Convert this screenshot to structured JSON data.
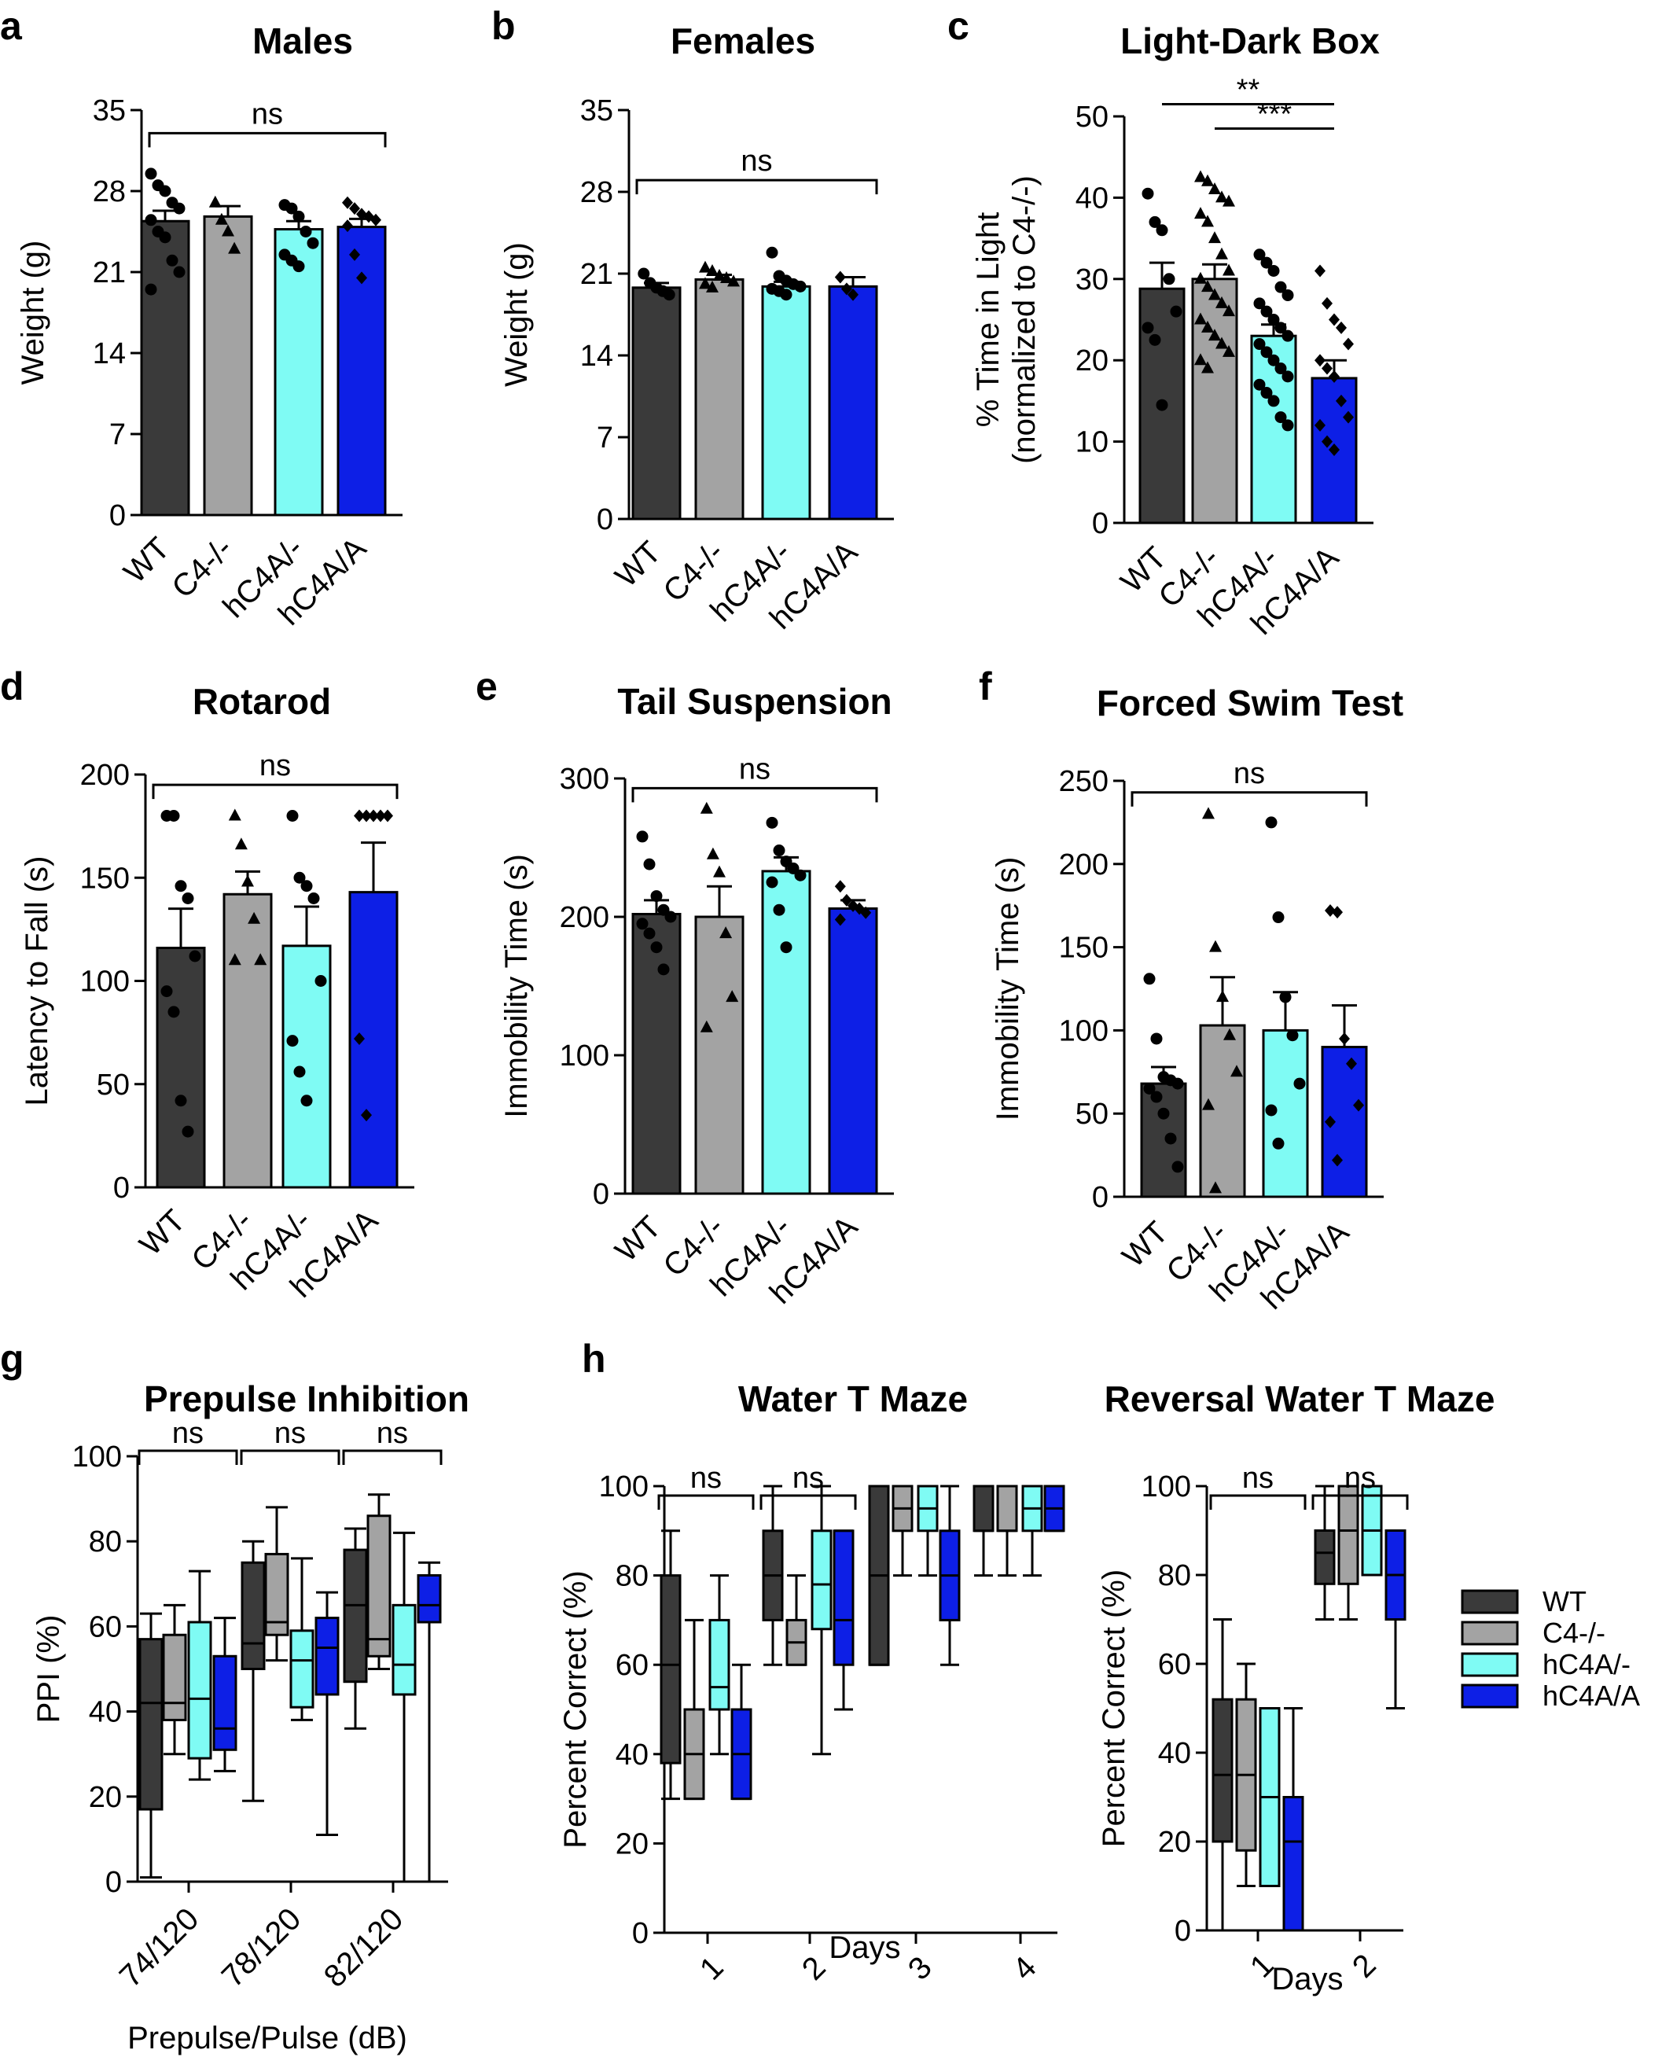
{
  "colors": {
    "WT": "#3a3a3a",
    "C4-/-": "#a3a3a3",
    "hC4A/-": "#7ffbf4",
    "hC4A/A": "#0d1fe6"
  },
  "legend": [
    "WT",
    "C4-/-",
    "hC4A/-",
    "hC4A/A"
  ],
  "chart_data": [
    {
      "id": "a",
      "letter": "a",
      "type": "bar",
      "title": "Males",
      "ylabel": "Weight (g)",
      "categories": [
        "WT",
        "C4-/-",
        "hC4A/-",
        "hC4A/A"
      ],
      "ylim": [
        0,
        35
      ],
      "yticks": [
        0,
        7,
        14,
        21,
        28,
        35
      ],
      "values": [
        25.4,
        25.8,
        24.7,
        24.9
      ],
      "sem": [
        0.9,
        0.9,
        0.7,
        0.7
      ],
      "points": [
        [
          29.5,
          28.5,
          28,
          27,
          26.5,
          25.5,
          24.5,
          24,
          22,
          21,
          19.5
        ],
        [
          27,
          25.5,
          24.5,
          23
        ],
        [
          26.8,
          26.5,
          25.8,
          24.5,
          23.5,
          22.5,
          22,
          21.5
        ],
        [
          27,
          26.5,
          26,
          25.8,
          25.5,
          25,
          22.5,
          20.5
        ]
      ],
      "comparisons": [
        {
          "from": 0,
          "to": 3,
          "label": "ns",
          "y": 33
        }
      ]
    },
    {
      "id": "b",
      "letter": "b",
      "type": "bar",
      "title": "Females",
      "ylabel": "Weight (g)",
      "categories": [
        "WT",
        "C4-/-",
        "hC4A/-",
        "hC4A/A"
      ],
      "ylim": [
        0,
        35
      ],
      "yticks": [
        0,
        7,
        14,
        21,
        28,
        35
      ],
      "values": [
        19.8,
        20.5,
        19.9,
        19.9
      ],
      "sem": [
        0.4,
        0.4,
        0.4,
        0.8
      ],
      "points": [
        [
          21,
          20.2,
          19.8,
          19.5,
          19.2
        ],
        [
          21.5,
          21.2,
          20.8,
          20.6,
          20.3,
          20.1,
          19.8
        ],
        [
          22.8,
          20.8,
          20.4,
          20.1,
          19.9,
          19.7,
          19.5,
          19.2
        ],
        [
          20.7,
          19.7,
          19.2
        ]
      ],
      "comparisons": [
        {
          "from": 0,
          "to": 3,
          "label": "ns",
          "y": 29
        }
      ]
    },
    {
      "id": "c",
      "letter": "c",
      "type": "bar",
      "title": "Light-Dark Box",
      "ylabel": "% Time in Light\n(normalized to C4-/-)",
      "categories": [
        "WT",
        "C4-/-",
        "hC4A/-",
        "hC4A/A"
      ],
      "ylim": [
        0,
        50
      ],
      "yticks": [
        0,
        10,
        20,
        30,
        40,
        50
      ],
      "values": [
        28.8,
        30,
        23,
        17.8
      ],
      "sem": [
        3.2,
        1.8,
        1.4,
        2.2
      ],
      "points": [
        [
          40.5,
          37,
          36,
          30,
          26,
          24,
          22.5,
          14.5
        ],
        [
          42.5,
          42,
          41,
          40,
          39.5,
          38,
          37,
          35,
          33,
          31,
          30,
          29,
          28,
          27,
          26,
          25,
          24,
          23,
          22,
          21,
          20,
          19
        ],
        [
          33,
          32,
          31,
          29,
          28,
          27,
          26,
          25,
          24,
          23,
          22,
          21,
          20,
          19,
          18,
          17,
          16,
          15,
          13,
          12
        ],
        [
          31,
          27,
          25,
          24,
          22,
          20,
          19,
          18,
          15,
          13,
          12,
          10,
          9
        ]
      ],
      "comparisons": [
        {
          "from": 0,
          "to": 3,
          "label": "**",
          "y": 51.5
        },
        {
          "from": 1,
          "to": 3,
          "label": "***",
          "y": 48.5
        }
      ]
    },
    {
      "id": "d",
      "letter": "d",
      "type": "bar",
      "title": "Rotarod",
      "ylabel": "Latency to Fall (s)",
      "categories": [
        "WT",
        "C4-/-",
        "hC4A/-",
        "hC4A/A"
      ],
      "ylim": [
        0,
        200
      ],
      "yticks": [
        0,
        50,
        100,
        150,
        200
      ],
      "values": [
        116,
        142,
        117,
        143
      ],
      "sem": [
        19,
        11,
        19,
        24
      ],
      "points": [
        [
          180,
          180,
          146,
          140,
          112,
          95,
          85,
          42,
          27
        ],
        [
          180,
          166,
          148,
          130,
          110,
          110
        ],
        [
          180,
          150,
          146,
          140,
          100,
          71,
          56,
          42
        ],
        [
          180,
          180,
          180,
          180,
          180,
          72,
          35
        ]
      ],
      "comparisons": [
        {
          "from": 0,
          "to": 3,
          "label": "ns",
          "y": 195
        }
      ]
    },
    {
      "id": "e",
      "letter": "e",
      "type": "bar",
      "title": "Tail Suspension",
      "ylabel": "Immobility Time (s)",
      "categories": [
        "WT",
        "C4-/-",
        "hC4A/-",
        "hC4A/A"
      ],
      "ylim": [
        0,
        300
      ],
      "yticks": [
        0,
        100,
        200,
        300
      ],
      "values": [
        202,
        200,
        233,
        206
      ],
      "sem": [
        10,
        22,
        10,
        6
      ],
      "points": [
        [
          258,
          238,
          215,
          205,
          200,
          195,
          188,
          178,
          162
        ],
        [
          278,
          245,
          232,
          188,
          142,
          120
        ],
        [
          268,
          248,
          240,
          235,
          230,
          225,
          205,
          178
        ],
        [
          222,
          212,
          208,
          206,
          203,
          198
        ]
      ],
      "comparisons": [
        {
          "from": 0,
          "to": 3,
          "label": "ns",
          "y": 293
        }
      ]
    },
    {
      "id": "f",
      "letter": "f",
      "type": "bar",
      "title": "Forced Swim Test",
      "ylabel": "Immobility Time (s)",
      "categories": [
        "WT",
        "C4-/-",
        "hC4A/-",
        "hC4A/A"
      ],
      "ylim": [
        0,
        250
      ],
      "yticks": [
        0,
        50,
        100,
        150,
        200,
        250
      ],
      "values": [
        68,
        103,
        100,
        90
      ],
      "sem": [
        10,
        29,
        23,
        25
      ],
      "points": [
        [
          131,
          95,
          72,
          70,
          68,
          65,
          60,
          50,
          35,
          18
        ],
        [
          230,
          150,
          120,
          97,
          75,
          55,
          5
        ],
        [
          225,
          168,
          120,
          97,
          68,
          52,
          32
        ],
        [
          172,
          171,
          95,
          80,
          55,
          45,
          22
        ]
      ],
      "comparisons": [
        {
          "from": 0,
          "to": 3,
          "label": "ns",
          "y": 243
        }
      ]
    },
    {
      "id": "g",
      "letter": "g",
      "type": "box",
      "title": "Prepulse Inhibition",
      "ylabel": "PPI (%)",
      "xlabel": "Prepulse/Pulse (dB)",
      "groups": [
        "74/120",
        "78/120",
        "82/120"
      ],
      "ylim": [
        0,
        100
      ],
      "yticks": [
        0,
        20,
        40,
        60,
        80,
        100
      ],
      "series": [
        {
          "name": "WT",
          "boxes": [
            [
              1,
              17,
              42,
              57,
              63
            ],
            [
              19,
              50,
              56,
              75,
              80
            ],
            [
              36,
              47,
              65,
              78,
              83
            ]
          ]
        },
        {
          "name": "C4-/-",
          "boxes": [
            [
              30,
              38,
              42,
              58,
              65
            ],
            [
              52,
              58,
              61,
              77,
              88
            ],
            [
              50,
              53,
              57,
              86,
              91
            ]
          ]
        },
        {
          "name": "hC4A/-",
          "boxes": [
            [
              24,
              29,
              43,
              61,
              73
            ],
            [
              38,
              41,
              52,
              59,
              76
            ],
            [
              0,
              44,
              51,
              65,
              82
            ]
          ]
        },
        {
          "name": "hC4A/A",
          "boxes": [
            [
              26,
              31,
              36,
              53,
              62
            ],
            [
              11,
              44,
              55,
              62,
              68
            ],
            [
              0,
              61,
              65,
              72,
              75
            ]
          ]
        }
      ],
      "comparisons": [
        {
          "group": 0,
          "label": "ns"
        },
        {
          "group": 1,
          "label": "ns"
        },
        {
          "group": 2,
          "label": "ns"
        }
      ]
    },
    {
      "id": "h1",
      "letter": "h",
      "type": "box",
      "title": "Water T Maze",
      "ylabel": "Percent Correct (%)",
      "xlabel": "Days",
      "groups": [
        "1",
        "2",
        "3",
        "4"
      ],
      "ylim": [
        0,
        100
      ],
      "yticks": [
        0,
        20,
        40,
        60,
        80,
        100
      ],
      "series": [
        {
          "name": "WT",
          "boxes": [
            [
              30,
              38,
              60,
              80,
              90
            ],
            [
              60,
              70,
              80,
              90,
              100
            ],
            [
              60,
              60,
              80,
              100,
              100
            ],
            [
              80,
              90,
              90,
              100,
              100
            ]
          ]
        },
        {
          "name": "C4-/-",
          "boxes": [
            [
              30,
              30,
              40,
              50,
              70
            ],
            [
              60,
              60,
              65,
              70,
              80
            ],
            [
              80,
              90,
              95,
              100,
              100
            ],
            [
              80,
              90,
              90,
              100,
              100
            ]
          ]
        },
        {
          "name": "hC4A/-",
          "boxes": [
            [
              40,
              50,
              55,
              70,
              80
            ],
            [
              40,
              68,
              78,
              90,
              100
            ],
            [
              80,
              90,
              95,
              100,
              100
            ],
            [
              80,
              90,
              95,
              100,
              100
            ]
          ]
        },
        {
          "name": "hC4A/A",
          "boxes": [
            [
              30,
              30,
              40,
              50,
              60
            ],
            [
              50,
              60,
              70,
              90,
              90
            ],
            [
              60,
              70,
              80,
              90,
              100
            ],
            [
              90,
              90,
              95,
              100,
              100
            ]
          ]
        }
      ],
      "comparisons": [
        {
          "group": 0,
          "label": "ns"
        },
        {
          "group": 1,
          "label": "ns"
        }
      ]
    },
    {
      "id": "h2",
      "letter": "",
      "type": "box",
      "title": "Reversal Water T Maze",
      "ylabel": "Percent Correct (%)",
      "xlabel": "Days",
      "groups": [
        "1",
        "2"
      ],
      "ylim": [
        0,
        100
      ],
      "yticks": [
        0,
        20,
        40,
        60,
        80,
        100
      ],
      "series": [
        {
          "name": "WT",
          "boxes": [
            [
              0,
              20,
              35,
              52,
              70
            ],
            [
              70,
              78,
              85,
              90,
              100
            ]
          ]
        },
        {
          "name": "C4-/-",
          "boxes": [
            [
              10,
              18,
              35,
              52,
              60
            ],
            [
              70,
              78,
              90,
              100,
              100
            ]
          ]
        },
        {
          "name": "hC4A/-",
          "boxes": [
            [
              10,
              10,
              30,
              50,
              50
            ],
            [
              80,
              80,
              90,
              100,
              100
            ]
          ]
        },
        {
          "name": "hC4A/A",
          "boxes": [
            [
              0,
              0,
              20,
              30,
              50
            ],
            [
              50,
              70,
              80,
              90,
              90
            ]
          ]
        }
      ],
      "comparisons": [
        {
          "group": 0,
          "label": "ns"
        },
        {
          "group": 1,
          "label": "ns"
        }
      ]
    }
  ]
}
